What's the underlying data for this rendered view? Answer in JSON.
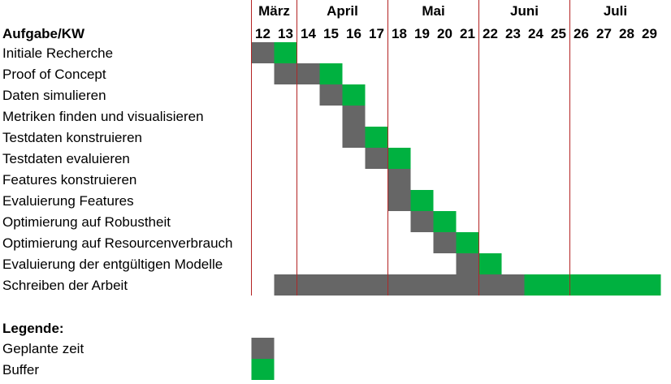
{
  "chart_data": {
    "type": "gantt",
    "header_label": "Aufgabe/KW",
    "weeks": [
      12,
      13,
      14,
      15,
      16,
      17,
      18,
      19,
      20,
      21,
      22,
      23,
      24,
      25,
      26,
      27,
      28,
      29
    ],
    "months": [
      {
        "label": "März",
        "start_week": 12,
        "end_week": 13
      },
      {
        "label": "April",
        "start_week": 14,
        "end_week": 17
      },
      {
        "label": "Mai",
        "start_week": 18,
        "end_week": 21
      },
      {
        "label": "Juni",
        "start_week": 22,
        "end_week": 25
      },
      {
        "label": "Juli",
        "start_week": 26,
        "end_week": 29
      }
    ],
    "tasks": [
      {
        "name": "Initiale Recherche",
        "planned": [
          12,
          12
        ],
        "buffer": [
          13,
          13
        ]
      },
      {
        "name": "Proof of Concept",
        "planned": [
          13,
          14
        ],
        "buffer": [
          15,
          15
        ]
      },
      {
        "name": "Daten simulieren",
        "planned": [
          15,
          15
        ],
        "buffer": [
          16,
          16
        ]
      },
      {
        "name": "Metriken finden und visualisieren",
        "planned": [
          16,
          16
        ],
        "buffer": null
      },
      {
        "name": "Testdaten konstruieren",
        "planned": [
          16,
          16
        ],
        "buffer": [
          17,
          17
        ]
      },
      {
        "name": "Testdaten evaluieren",
        "planned": [
          17,
          17
        ],
        "buffer": [
          18,
          18
        ]
      },
      {
        "name": "Features konstruieren",
        "planned": [
          18,
          18
        ],
        "buffer": null
      },
      {
        "name": "Evaluierung Features",
        "planned": [
          18,
          18
        ],
        "buffer": [
          19,
          19
        ]
      },
      {
        "name": "Optimierung auf Robustheit",
        "planned": [
          19,
          19
        ],
        "buffer": [
          20,
          20
        ]
      },
      {
        "name": "Optimierung auf Resourcenverbrauch",
        "planned": [
          20,
          20
        ],
        "buffer": [
          21,
          21
        ]
      },
      {
        "name": "Evaluierung der entgültigen Modelle",
        "planned": [
          21,
          21
        ],
        "buffer": [
          22,
          22
        ]
      },
      {
        "name": "Schreiben der Arbeit",
        "planned": [
          13,
          23
        ],
        "buffer": [
          24,
          29
        ]
      }
    ],
    "legend": {
      "title": "Legende:",
      "items": [
        {
          "label": "Geplante zeit",
          "color": "#666666"
        },
        {
          "label": "Buffer",
          "color": "#00b140"
        }
      ]
    },
    "colors": {
      "planned": "#666666",
      "buffer": "#00b140",
      "month_divider": "#b22222"
    }
  }
}
